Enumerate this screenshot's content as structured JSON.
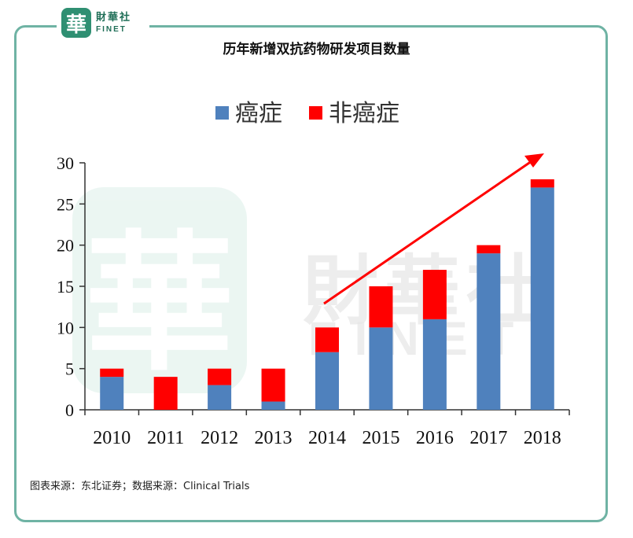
{
  "logo": {
    "badge": "華",
    "name_cn": "財華社",
    "name_en": "FINET"
  },
  "watermark": {
    "seal": "華",
    "name_cn": "財華社",
    "name_en": "FINET"
  },
  "title": "历年新增双抗药物研发项目数量",
  "source": "图表来源：东北证券；数据来源：Clinical Trials",
  "colors": {
    "cancer": "#4f81bd",
    "non_cancer": "#ff0000",
    "arrow": "#ff0000",
    "frame": "#6fb3a4"
  },
  "chart_data": {
    "type": "bar",
    "stacked": true,
    "categories": [
      "2010",
      "2011",
      "2012",
      "2013",
      "2014",
      "2015",
      "2016",
      "2017",
      "2018"
    ],
    "series": [
      {
        "name": "癌症",
        "color": "#4f81bd",
        "values": [
          4,
          0,
          3,
          1,
          7,
          10,
          11,
          19,
          27
        ]
      },
      {
        "name": "非癌症",
        "color": "#ff0000",
        "values": [
          1,
          4,
          2,
          4,
          3,
          5,
          6,
          1,
          1
        ]
      }
    ],
    "ylim": [
      0,
      30
    ],
    "yticks": [
      0,
      5,
      10,
      15,
      20,
      25,
      30
    ],
    "legend": "top",
    "grid": false,
    "annotation": "upward-trend-arrow"
  }
}
